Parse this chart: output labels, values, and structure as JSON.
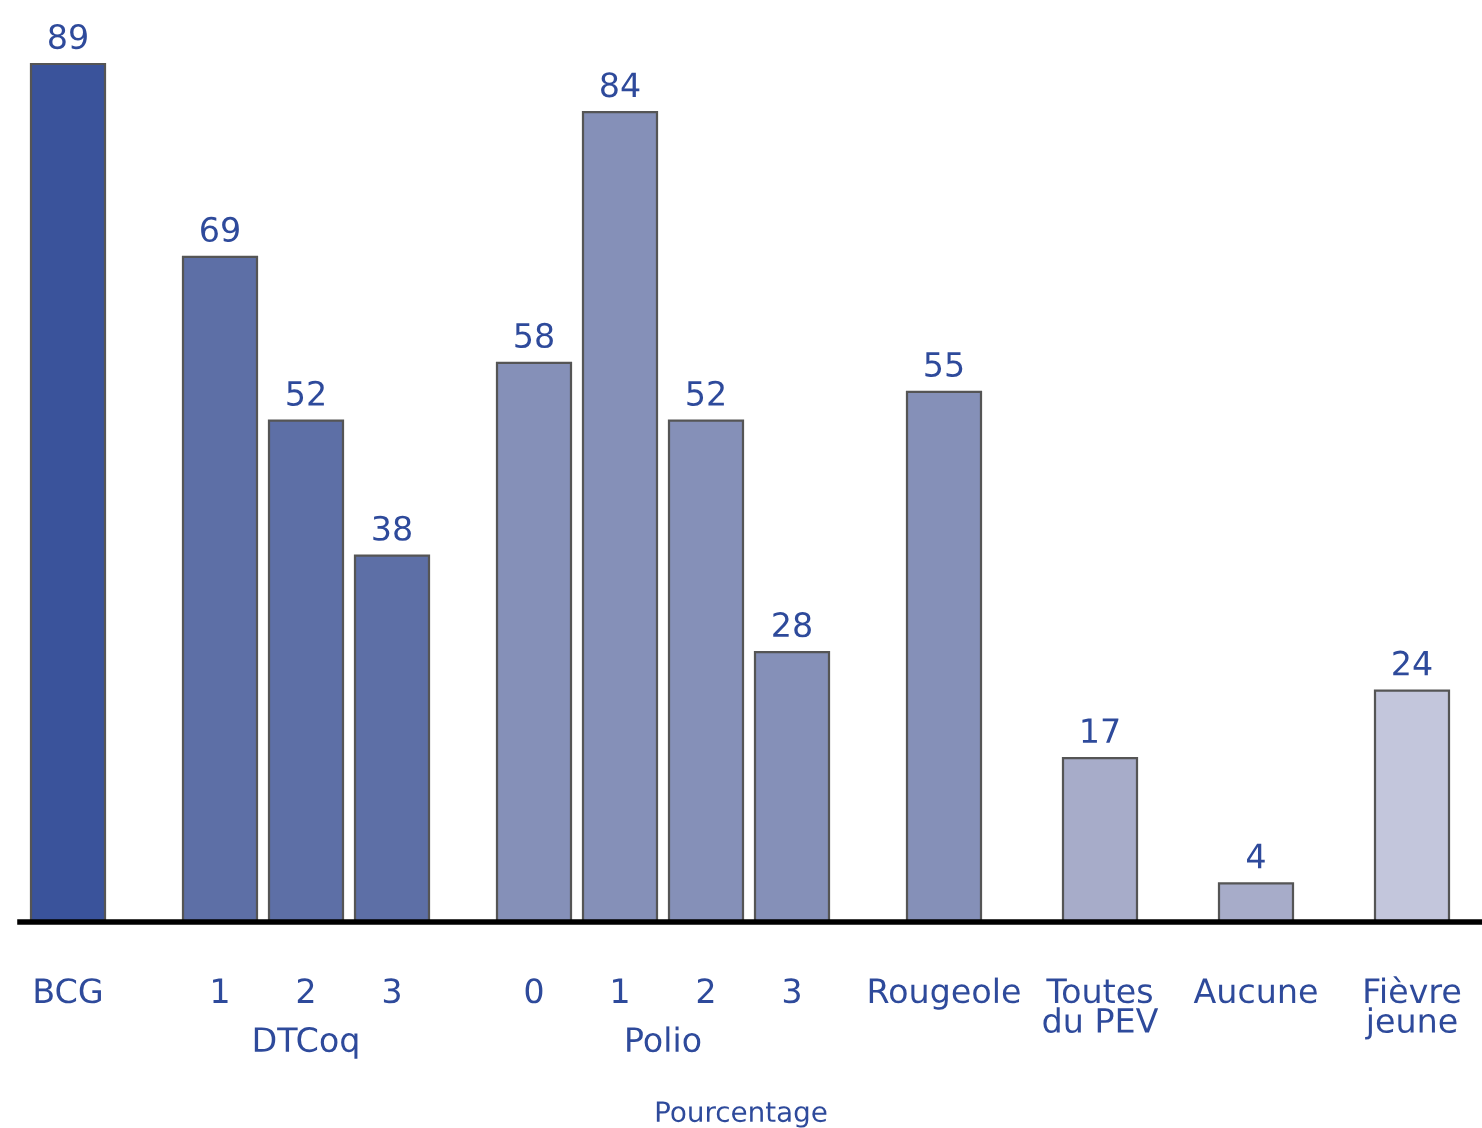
{
  "chart_data": {
    "type": "bar",
    "xlabel": "Pourcentage",
    "categories": [
      "BCG",
      "1",
      "2",
      "3",
      "0",
      "1",
      "2",
      "3",
      "Rougeole",
      "Toutes\ndu PEV",
      "Aucune",
      "Fièvre\njeune"
    ],
    "values": [
      89,
      69,
      52,
      38,
      58,
      84,
      52,
      28,
      55,
      17,
      4,
      24
    ],
    "colors": [
      "#3a539b",
      "#5d6fa6",
      "#5d6fa6",
      "#5d6fa6",
      "#8590b8",
      "#8590b8",
      "#8590b8",
      "#8590b8",
      "#8590b8",
      "#a7acc9",
      "#a7acc9",
      "#c3c6dc"
    ],
    "data_labels": true,
    "grid": false,
    "legend": false,
    "annotations": [
      "DTCoq",
      "Polio"
    ]
  }
}
